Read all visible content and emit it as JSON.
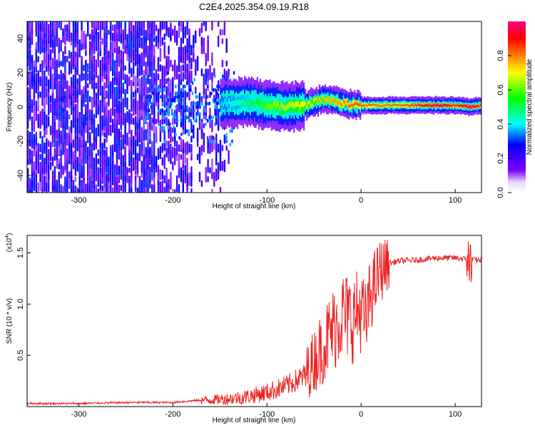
{
  "title": "C2E4.2025.354.09.19.R18",
  "chart_data": [
    {
      "type": "heatmap",
      "xlabel": "Height of straight line (km)",
      "ylabel": "Frequency (Hz)",
      "xlim": [
        -355,
        128
      ],
      "ylim": [
        -50,
        50
      ],
      "xticks": [
        -300,
        -200,
        -100,
        0,
        100
      ],
      "yticks": [
        -40,
        -20,
        0,
        20,
        40
      ],
      "colorbar": {
        "label": "Normalized spectral amplitude",
        "range": [
          0,
          1
        ],
        "ticks": [
          0.0,
          0.2,
          0.4,
          0.6,
          0.8
        ],
        "colors": [
          "#ffffff",
          "#7f00ff",
          "#0000ff",
          "#00ffff",
          "#00ff00",
          "#ffff00",
          "#ff8000",
          "#ff0000",
          "#ff0080"
        ]
      },
      "ridge": [
        {
          "x": -150,
          "f": 2,
          "amp": 0.25
        },
        {
          "x": -120,
          "f": 3,
          "amp": 0.35
        },
        {
          "x": -100,
          "f": 1,
          "amp": 0.45
        },
        {
          "x": -80,
          "f": 0,
          "amp": 0.5
        },
        {
          "x": -60,
          "f": 1,
          "amp": 0.55
        },
        {
          "x": -40,
          "f": 5,
          "amp": 0.6
        },
        {
          "x": -20,
          "f": 2,
          "amp": 0.7
        },
        {
          "x": 0,
          "f": 1,
          "amp": 0.75
        },
        {
          "x": 20,
          "f": 1,
          "amp": 0.7
        },
        {
          "x": 50,
          "f": 1,
          "amp": 0.75
        },
        {
          "x": 80,
          "f": 1,
          "amp": 0.95
        },
        {
          "x": 100,
          "f": 1,
          "amp": 0.8
        },
        {
          "x": 115,
          "f": 0,
          "amp": 1.0
        },
        {
          "x": 128,
          "f": 1,
          "amp": 0.75
        }
      ]
    },
    {
      "type": "line",
      "xlabel": "Height of straight line (km)",
      "ylabel": "SNR (10 * v/v)",
      "yscale_label": "(x10",
      "yscale_exp": "4",
      "yscale_close": ")",
      "xlim": [
        -355,
        128
      ],
      "ylim": [
        0,
        1.67
      ],
      "xticks": [
        -300,
        -200,
        -100,
        0,
        100
      ],
      "yticks": [
        0.5,
        1.0,
        1.5
      ],
      "ytick_labels": [
        "0.5",
        "1.0",
        "1.5"
      ],
      "color": "#ee2222",
      "series": [
        {
          "x": [
            -355,
            -300,
            -250,
            -200,
            -175,
            -150,
            -125,
            -100,
            -80,
            -60,
            -50,
            -40,
            -30,
            -20,
            -10,
            0,
            5,
            10,
            15,
            20,
            25,
            30,
            40,
            60,
            80,
            100,
            110,
            116,
            120,
            128
          ],
          "y": [
            0.03,
            0.03,
            0.04,
            0.04,
            0.06,
            0.07,
            0.09,
            0.14,
            0.2,
            0.3,
            0.45,
            0.6,
            0.75,
            0.9,
            0.85,
            0.95,
            0.8,
            1.1,
            1.2,
            1.32,
            1.36,
            1.4,
            1.42,
            1.43,
            1.45,
            1.45,
            1.44,
            1.45,
            1.43,
            1.43
          ]
        }
      ]
    }
  ]
}
